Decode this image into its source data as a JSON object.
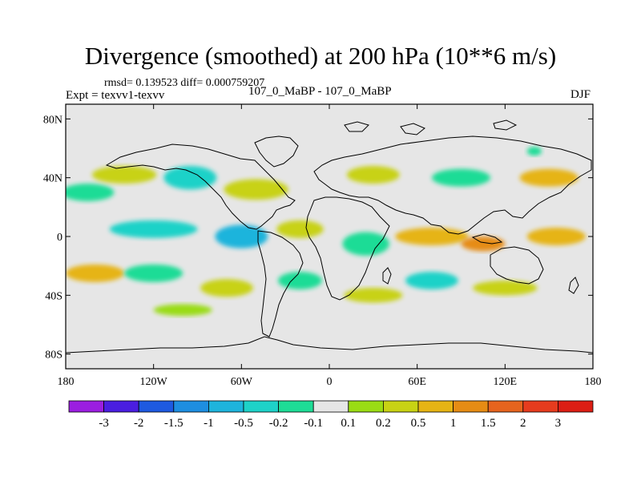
{
  "chart_data": {
    "type": "heatmap",
    "title": "Divergence (smoothed) at 200 hPa (10**6 m/s)",
    "stats": "rmsd= 0.139523 diff= 0.000759207",
    "left_label": "Expt = texvv1-texvv",
    "center_label": "107_0_MaBP - 107_0_MaBP",
    "right_label": "DJF",
    "x_ticks": [
      "180",
      "120W",
      "60W",
      "0",
      "60E",
      "120E",
      "180"
    ],
    "x_values": [
      -180,
      -120,
      -60,
      0,
      60,
      120,
      180
    ],
    "y_ticks": [
      "80N",
      "40N",
      "0",
      "40S",
      "80S"
    ],
    "y_values": [
      80,
      40,
      0,
      -40,
      -80
    ],
    "xlim": [
      -180,
      180
    ],
    "ylim": [
      -90,
      90
    ],
    "colorbar": {
      "labels": [
        "-3",
        "-2",
        "-1.5",
        "-1",
        "-0.5",
        "-0.2",
        "-0.1",
        "0.1",
        "0.2",
        "0.5",
        "1",
        "1.5",
        "2",
        "3"
      ],
      "colors": [
        "#9b1ee0",
        "#4a1ee0",
        "#1e5ae0",
        "#1e8ee0",
        "#1eb4dc",
        "#1ed2c8",
        "#1edc96",
        "#e6e6e6",
        "#9adc14",
        "#c8d214",
        "#e6b414",
        "#e68c14",
        "#e6641e",
        "#e63c1e",
        "#dc1e14"
      ]
    },
    "regions": [
      {
        "name": "n-pacific-cyan",
        "level": -0.2,
        "lon": -165,
        "lat": 30,
        "dlon": 18,
        "dlat": 6
      },
      {
        "name": "n-pacific-green",
        "level": 0.2,
        "lon": -140,
        "lat": 42,
        "dlon": 22,
        "dlat": 6
      },
      {
        "name": "n-atl-cyan",
        "level": -0.5,
        "lon": -95,
        "lat": 40,
        "dlon": 18,
        "dlat": 8
      },
      {
        "name": "n-amer-green",
        "level": 0.2,
        "lon": -50,
        "lat": 32,
        "dlon": 22,
        "dlat": 7
      },
      {
        "name": "europe-green",
        "level": 0.2,
        "lon": 30,
        "lat": 42,
        "dlon": 18,
        "dlat": 6
      },
      {
        "name": "asia-cyan",
        "level": -0.2,
        "lon": 90,
        "lat": 40,
        "dlon": 20,
        "dlat": 6
      },
      {
        "name": "w-pacific-green",
        "level": 0.5,
        "lon": 150,
        "lat": 40,
        "dlon": 20,
        "dlat": 6
      },
      {
        "name": "trop-pac-cyan",
        "level": -0.5,
        "lon": -120,
        "lat": 5,
        "dlon": 30,
        "dlat": 6
      },
      {
        "name": "trop-amer-blue",
        "level": -1,
        "lon": -60,
        "lat": 0,
        "dlon": 18,
        "dlat": 8
      },
      {
        "name": "trop-atl-green",
        "level": 0.2,
        "lon": -20,
        "lat": 5,
        "dlon": 16,
        "dlat": 6
      },
      {
        "name": "trop-africa-cyan",
        "level": -0.2,
        "lon": 25,
        "lat": -5,
        "dlon": 16,
        "dlat": 8
      },
      {
        "name": "indian-orange",
        "level": 0.5,
        "lon": 70,
        "lat": 0,
        "dlon": 25,
        "dlat": 6
      },
      {
        "name": "maritime-orange",
        "level": 1,
        "lon": 105,
        "lat": -5,
        "dlon": 15,
        "dlat": 5
      },
      {
        "name": "trop-pac-orange",
        "level": 0.5,
        "lon": 155,
        "lat": 0,
        "dlon": 20,
        "dlat": 6
      },
      {
        "name": "s-pac-orange",
        "level": 0.5,
        "lon": -160,
        "lat": -25,
        "dlon": 20,
        "dlat": 6
      },
      {
        "name": "s-pac-cyan",
        "level": -0.2,
        "lon": -120,
        "lat": -25,
        "dlon": 20,
        "dlat": 6
      },
      {
        "name": "s-amer-green",
        "level": 0.2,
        "lon": -70,
        "lat": -35,
        "dlon": 18,
        "dlat": 6
      },
      {
        "name": "s-atl-cyan",
        "level": -0.2,
        "lon": -20,
        "lat": -30,
        "dlon": 15,
        "dlat": 6
      },
      {
        "name": "s-africa-green",
        "level": 0.2,
        "lon": 30,
        "lat": -40,
        "dlon": 20,
        "dlat": 5
      },
      {
        "name": "s-indian-cyan",
        "level": -0.5,
        "lon": 70,
        "lat": -30,
        "dlon": 18,
        "dlat": 6
      },
      {
        "name": "australia-green",
        "level": 0.2,
        "lon": 120,
        "lat": -35,
        "dlon": 22,
        "dlat": 5
      },
      {
        "name": "s-ocean-green",
        "level": 0.1,
        "lon": -100,
        "lat": -50,
        "dlon": 20,
        "dlat": 4
      },
      {
        "name": "arctic-spot",
        "level": -0.2,
        "lon": 140,
        "lat": 58,
        "dlon": 5,
        "dlat": 3
      }
    ]
  }
}
